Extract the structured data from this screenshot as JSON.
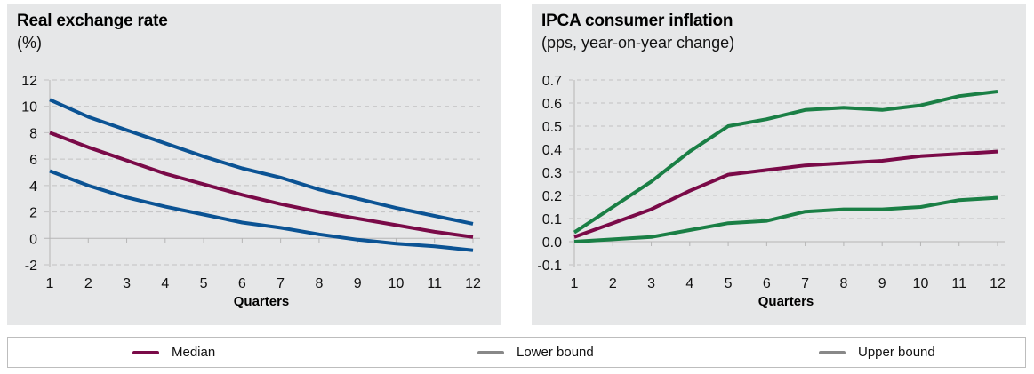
{
  "chart_data": [
    {
      "type": "line",
      "title": "Real exchange rate",
      "subtitle": "(%)",
      "xlabel": "Quarters",
      "ylabel": "",
      "x": [
        1,
        2,
        3,
        4,
        5,
        6,
        7,
        8,
        9,
        10,
        11,
        12
      ],
      "ylim": [
        -2,
        12
      ],
      "yticks": [
        -2,
        0,
        2,
        4,
        6,
        8,
        10,
        12
      ],
      "ytick_labels": [
        "-2",
        "0",
        "2",
        "4",
        "6",
        "8",
        "10",
        "12"
      ],
      "grid": true,
      "series": [
        {
          "name": "Upper bound",
          "color": "#0b5394",
          "values": [
            10.5,
            9.2,
            8.2,
            7.2,
            6.2,
            5.3,
            4.6,
            3.7,
            3.0,
            2.3,
            1.7,
            1.1
          ]
        },
        {
          "name": "Median",
          "color": "#7a0a48",
          "values": [
            8.0,
            6.9,
            5.9,
            4.9,
            4.1,
            3.3,
            2.6,
            2.0,
            1.5,
            1.0,
            0.5,
            0.1
          ]
        },
        {
          "name": "Lower bound",
          "color": "#0b5394",
          "values": [
            5.1,
            4.0,
            3.1,
            2.4,
            1.8,
            1.2,
            0.8,
            0.3,
            -0.1,
            -0.4,
            -0.6,
            -0.9
          ]
        }
      ]
    },
    {
      "type": "line",
      "title": "IPCA consumer inflation",
      "subtitle": "(pps, year-on-year change)",
      "xlabel": "Quarters",
      "ylabel": "",
      "x": [
        1,
        2,
        3,
        4,
        5,
        6,
        7,
        8,
        9,
        10,
        11,
        12
      ],
      "ylim": [
        -0.1,
        0.7
      ],
      "yticks": [
        -0.1,
        0.0,
        0.1,
        0.2,
        0.3,
        0.4,
        0.5,
        0.6,
        0.7
      ],
      "ytick_labels": [
        "-0.1",
        "0.0",
        "0.1",
        "0.2",
        "0.3",
        "0.4",
        "0.5",
        "0.6",
        "0.7"
      ],
      "grid": true,
      "series": [
        {
          "name": "Upper bound",
          "color": "#1a7f45",
          "values": [
            0.04,
            0.15,
            0.26,
            0.39,
            0.5,
            0.53,
            0.57,
            0.58,
            0.57,
            0.59,
            0.63,
            0.65
          ]
        },
        {
          "name": "Median",
          "color": "#7a0a48",
          "values": [
            0.02,
            0.08,
            0.14,
            0.22,
            0.29,
            0.31,
            0.33,
            0.34,
            0.35,
            0.37,
            0.38,
            0.39
          ]
        },
        {
          "name": "Lower bound",
          "color": "#1a7f45",
          "values": [
            0.0,
            0.01,
            0.02,
            0.05,
            0.08,
            0.09,
            0.13,
            0.14,
            0.14,
            0.15,
            0.18,
            0.19
          ]
        }
      ]
    }
  ],
  "legend": {
    "items": [
      {
        "label": "Median",
        "color": "#7a0a48"
      },
      {
        "label": "Lower bound",
        "color": "#888888"
      },
      {
        "label": "Upper bound",
        "color": "#888888"
      }
    ]
  }
}
